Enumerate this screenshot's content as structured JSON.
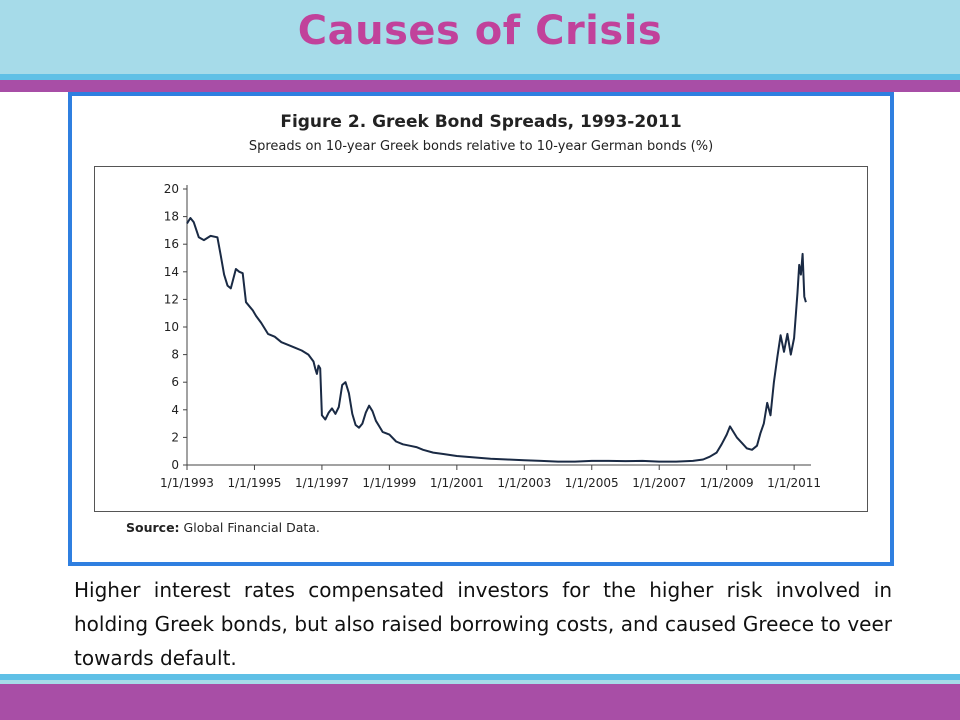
{
  "slide": {
    "title": "Causes of Crisis",
    "caption": "Higher interest rates compensated investors for the higher risk involved in holding Greek bonds, but also raised borrowing costs, and caused Greece to veer towards default.",
    "colors": {
      "title": "#c1429b",
      "header_bg": "#a6dbe9",
      "stripe_blue": "#5fc0e6",
      "stripe_purple": "#a84ea6",
      "figure_border": "#2f7fe0"
    }
  },
  "figure": {
    "source_label": "Source:",
    "source_text": "Global Financial Data."
  },
  "chart_data": {
    "type": "line",
    "title": "Figure 2. Greek Bond Spreads, 1993-2011",
    "subtitle": "Spreads on 10-year Greek bonds relative to 10-year German bonds (%)",
    "xlabel": "",
    "ylabel": "",
    "ylim": [
      0,
      20
    ],
    "xlim": [
      1993.0,
      2011.5
    ],
    "yticks": [
      0,
      2,
      4,
      6,
      8,
      10,
      12,
      14,
      16,
      18,
      20
    ],
    "xticks": [
      {
        "value": 1993,
        "label": "1/1/1993"
      },
      {
        "value": 1995,
        "label": "1/1/1995"
      },
      {
        "value": 1997,
        "label": "1/1/1997"
      },
      {
        "value": 1999,
        "label": "1/1/1999"
      },
      {
        "value": 2001,
        "label": "1/1/2001"
      },
      {
        "value": 2003,
        "label": "1/1/2003"
      },
      {
        "value": 2005,
        "label": "1/1/2005"
      },
      {
        "value": 2007,
        "label": "1/1/2007"
      },
      {
        "value": 2009,
        "label": "1/1/2009"
      },
      {
        "value": 2011,
        "label": "1/1/2011"
      }
    ],
    "grid": false,
    "line_color": "#1a2a44",
    "series": [
      {
        "x": [
          1993.0,
          1993.1,
          1993.2,
          1993.35,
          1993.5,
          1993.7,
          1993.9,
          1994.0,
          1994.1,
          1994.2,
          1994.3,
          1994.45,
          1994.55,
          1994.65,
          1994.75,
          1994.85,
          1994.95,
          1995.05,
          1995.2,
          1995.4,
          1995.6,
          1995.8,
          1996.0,
          1996.2,
          1996.4,
          1996.6,
          1996.75,
          1996.8,
          1996.85,
          1996.9,
          1996.95,
          1997.0,
          1997.1,
          1997.2,
          1997.3,
          1997.4,
          1997.5,
          1997.6,
          1997.7,
          1997.8,
          1997.9,
          1998.0,
          1998.1,
          1998.2,
          1998.3,
          1998.4,
          1998.5,
          1998.6,
          1998.7,
          1998.8,
          1999.0,
          1999.2,
          1999.4,
          1999.6,
          1999.8,
          2000.0,
          2000.3,
          2000.6,
          2001.0,
          2001.5,
          2002.0,
          2002.5,
          2003.0,
          2003.5,
          2004.0,
          2004.5,
          2005.0,
          2005.5,
          2006.0,
          2006.5,
          2007.0,
          2007.5,
          2008.0,
          2008.3,
          2008.5,
          2008.7,
          2008.85,
          2009.0,
          2009.1,
          2009.2,
          2009.3,
          2009.45,
          2009.6,
          2009.75,
          2009.9,
          2010.0,
          2010.1,
          2010.2,
          2010.3,
          2010.4,
          2010.5,
          2010.6,
          2010.7,
          2010.8,
          2010.9,
          2011.0,
          2011.1,
          2011.15,
          2011.2,
          2011.25,
          2011.3,
          2011.35
        ],
        "y": [
          17.5,
          17.9,
          17.6,
          16.5,
          16.3,
          16.6,
          16.5,
          15.2,
          13.8,
          13.0,
          12.8,
          14.2,
          14.0,
          13.9,
          11.8,
          11.5,
          11.2,
          10.8,
          10.3,
          9.5,
          9.3,
          8.9,
          8.7,
          8.5,
          8.3,
          8.0,
          7.5,
          7.0,
          6.6,
          7.2,
          7.0,
          3.6,
          3.3,
          3.8,
          4.1,
          3.7,
          4.2,
          5.8,
          6.0,
          5.2,
          3.7,
          2.9,
          2.7,
          3.0,
          3.8,
          4.3,
          3.9,
          3.2,
          2.8,
          2.4,
          2.2,
          1.7,
          1.5,
          1.4,
          1.3,
          1.1,
          0.9,
          0.8,
          0.65,
          0.55,
          0.45,
          0.4,
          0.35,
          0.3,
          0.25,
          0.25,
          0.3,
          0.3,
          0.28,
          0.3,
          0.25,
          0.25,
          0.3,
          0.4,
          0.6,
          0.9,
          1.5,
          2.2,
          2.8,
          2.4,
          2.0,
          1.6,
          1.2,
          1.1,
          1.4,
          2.3,
          3.0,
          4.5,
          3.6,
          6.0,
          7.8,
          9.4,
          8.2,
          9.5,
          8.0,
          9.2,
          12.5,
          14.5,
          13.8,
          15.3,
          12.2,
          11.8
        ]
      }
    ]
  }
}
